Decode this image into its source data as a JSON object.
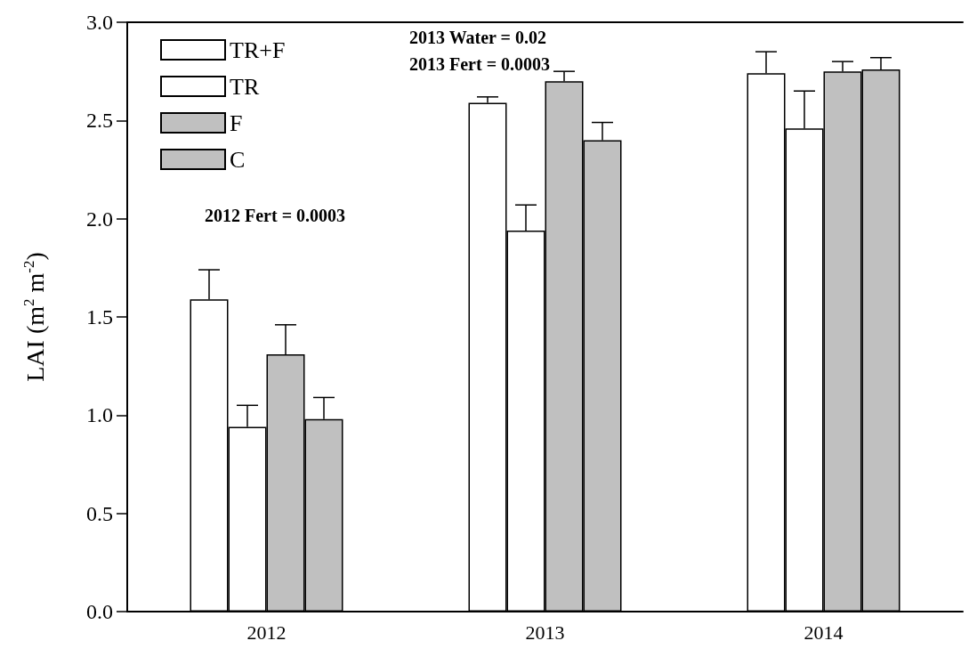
{
  "chart_data": {
    "type": "bar",
    "ylabel": "LAI (m$^{2}$ m$^{-2}$)",
    "categories": [
      "2012",
      "2013",
      "2014"
    ],
    "series": [
      {
        "name": "TR+F",
        "color": "#ffffff",
        "values": [
          1.59,
          2.59,
          2.74
        ],
        "errors": [
          [
            1.59,
            1.74
          ],
          [
            2.59,
            2.62
          ],
          [
            2.74,
            2.85
          ]
        ]
      },
      {
        "name": "TR",
        "color": "#ffffff",
        "values": [
          0.94,
          1.94,
          2.46
        ],
        "errors": [
          [
            0.94,
            1.05
          ],
          [
            1.94,
            2.07
          ],
          [
            2.46,
            2.65
          ]
        ]
      },
      {
        "name": "F",
        "color": "#c0c0c0",
        "values": [
          1.31,
          2.7,
          2.75
        ],
        "errors": [
          [
            1.31,
            1.46
          ],
          [
            2.7,
            2.75
          ],
          [
            2.75,
            2.8
          ]
        ]
      },
      {
        "name": "C",
        "color": "#c0c0c0",
        "values": [
          0.98,
          2.4,
          2.76
        ],
        "errors": [
          [
            0.98,
            1.09
          ],
          [
            2.4,
            2.49
          ],
          [
            2.76,
            2.82
          ]
        ]
      }
    ],
    "ylim": [
      0,
      3
    ],
    "yticks": [
      {
        "value": 0,
        "label": "0.0"
      },
      {
        "value": 0.5,
        "label": "0.5"
      },
      {
        "value": 1,
        "label": "1.0"
      },
      {
        "value": 1.5,
        "label": "1.5"
      },
      {
        "value": 2,
        "label": "2.0"
      },
      {
        "value": 2.5,
        "label": "2.5"
      },
      {
        "value": 3,
        "label": "3.0"
      }
    ],
    "annotations": [
      "2012 Fert = 0.0003",
      "2013 Water = 0.02",
      "2013 Fert = 0.0003"
    ],
    "legend": "top left",
    "grid": false
  }
}
